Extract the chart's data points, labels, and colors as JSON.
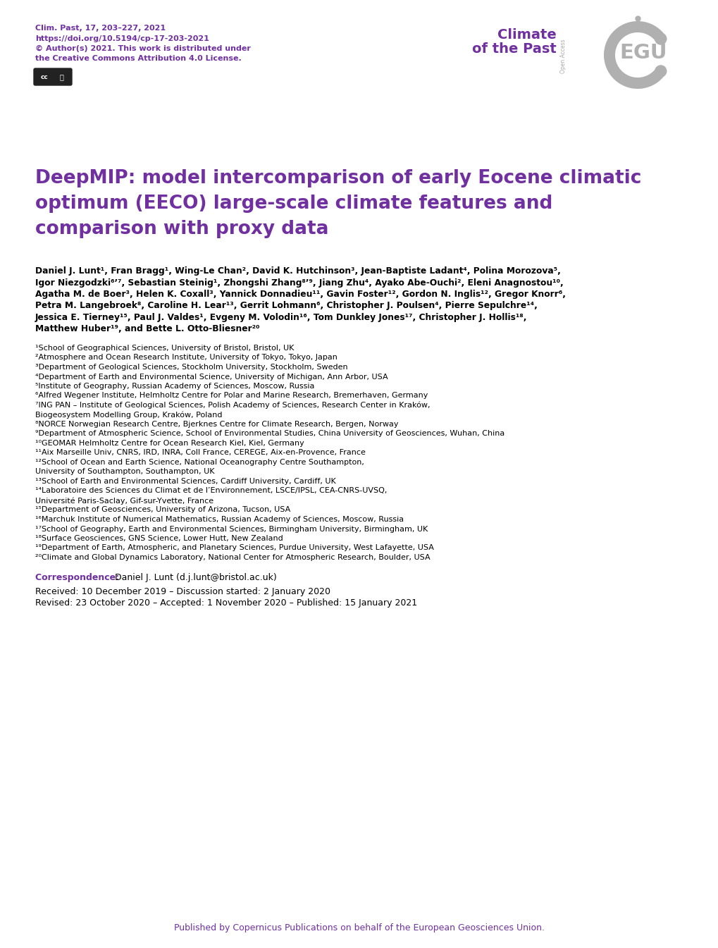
{
  "background_color": "#ffffff",
  "purple_color": "#7030A0",
  "black_color": "#000000",
  "header_citation": "Clim. Past, 17, 203–227, 2021",
  "header_doi": "https://doi.org/10.5194/cp-17-203-2021",
  "header_copyright": "© Author(s) 2021. This work is distributed under",
  "header_license": "the Creative Commons Attribution 4.0 License.",
  "journal_name_line1": "Climate",
  "journal_name_line2": "of the Past",
  "journal_open_access": "Open Access",
  "title_line1": "DeepMIP: model intercomparison of early Eocene climatic",
  "title_line2": "optimum (EECO) large-scale climate features and",
  "title_line3": "comparison with proxy data",
  "author_lines": [
    "Daniel J. Lunt¹, Fran Bragg¹, Wing-Le Chan², David K. Hutchinson³, Jean-Baptiste Ladant⁴, Polina Morozova⁵,",
    "Igor Niezgodzki⁶’⁷, Sebastian Steinig¹, Zhongshi Zhang⁸’⁹, Jiang Zhu⁴, Ayako Abe-Ouchi², Eleni Anagnostou¹⁰,",
    "Agatha M. de Boer³, Helen K. Coxall³, Yannick Donnadieu¹¹, Gavin Foster¹², Gordon N. Inglis¹², Gregor Knorr⁶,",
    "Petra M. Langebroek⁸, Caroline H. Lear¹³, Gerrit Lohmann⁶, Christopher J. Poulsen⁴, Pierre Sepulchre¹⁴,",
    "Jessica E. Tierney¹⁵, Paul J. Valdes¹, Evgeny M. Volodin¹⁶, Tom Dunkley Jones¹⁷, Christopher J. Hollis¹⁸,",
    "Matthew Huber¹⁹, and Bette L. Otto-Bliesner²⁰"
  ],
  "affiliation_lines": [
    "¹School of Geographical Sciences, University of Bristol, Bristol, UK",
    "²Atmosphere and Ocean Research Institute, University of Tokyo, Tokyo, Japan",
    "³Department of Geological Sciences, Stockholm University, Stockholm, Sweden",
    "⁴Department of Earth and Environmental Science, University of Michigan, Ann Arbor, USA",
    "⁵Institute of Geography, Russian Academy of Sciences, Moscow, Russia",
    "⁶Alfred Wegener Institute, Helmholtz Centre for Polar and Marine Research, Bremerhaven, Germany",
    "⁷ING PAN – Institute of Geological Sciences, Polish Academy of Sciences, Research Center in Kraków,",
    "Biogeosystem Modelling Group, Kraków, Poland",
    "⁸NORCE Norwegian Research Centre, Bjerknes Centre for Climate Research, Bergen, Norway",
    "⁹Department of Atmospheric Science, School of Environmental Studies, China University of Geosciences, Wuhan, China",
    "¹⁰GEOMAR Helmholtz Centre for Ocean Research Kiel, Kiel, Germany",
    "¹¹Aix Marseille Univ, CNRS, IRD, INRA, Coll France, CEREGE, Aix-en-Provence, France",
    "¹²School of Ocean and Earth Science, National Oceanography Centre Southampton,",
    "University of Southampton, Southampton, UK",
    "¹³School of Earth and Environmental Sciences, Cardiff University, Cardiff, UK",
    "¹⁴Laboratoire des Sciences du Climat et de l’Environnement, LSCE/IPSL, CEA-CNRS-UVSQ,",
    "Université Paris-Saclay, Gif-sur-Yvette, France",
    "¹⁵Department of Geosciences, University of Arizona, Tucson, USA",
    "¹⁶Marchuk Institute of Numerical Mathematics, Russian Academy of Sciences, Moscow, Russia",
    "¹⁷School of Geography, Earth and Environmental Sciences, Birmingham University, Birmingham, UK",
    "¹⁸Surface Geosciences, GNS Science, Lower Hutt, New Zealand",
    "¹⁹Department of Earth, Atmospheric, and Planetary Sciences, Purdue University, West Lafayette, USA",
    "²⁰Climate and Global Dynamics Laboratory, National Center for Atmospheric Research, Boulder, USA"
  ],
  "correspondence_label": "Correspondence: ",
  "correspondence_text": "Daniel J. Lunt (d.j.lunt@bristol.ac.uk)",
  "received_text": "Received: 10 December 2019 – Discussion started: 2 January 2020",
  "revised_text": "Revised: 23 October 2020 – Accepted: 1 November 2020 – Published: 15 January 2021",
  "published_text": "Published by Copernicus Publications on behalf of the European Geosciences Union."
}
